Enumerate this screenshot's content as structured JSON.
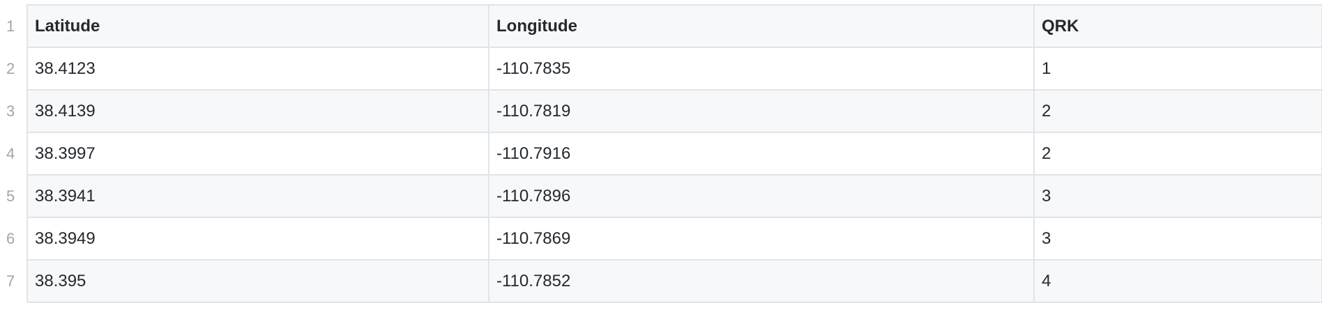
{
  "table": {
    "line_numbers": [
      "1",
      "2",
      "3",
      "4",
      "5",
      "6",
      "7"
    ],
    "columns": [
      "Latitude",
      "Longitude",
      "QRK"
    ],
    "rows": [
      [
        "38.4123",
        "-110.7835",
        "1"
      ],
      [
        "38.4139",
        "-110.7819",
        "2"
      ],
      [
        "38.3997",
        "-110.7916",
        "2"
      ],
      [
        "38.3941",
        "-110.7896",
        "3"
      ],
      [
        "38.3949",
        "-110.7869",
        "3"
      ],
      [
        "38.395",
        "-110.7852",
        "4"
      ]
    ]
  },
  "colors": {
    "header_bg": "#f6f8fa",
    "stripe_bg": "#f6f8fa",
    "border": "#e1e4e8",
    "line_number": "#a5a5a5",
    "text": "#24292e"
  }
}
